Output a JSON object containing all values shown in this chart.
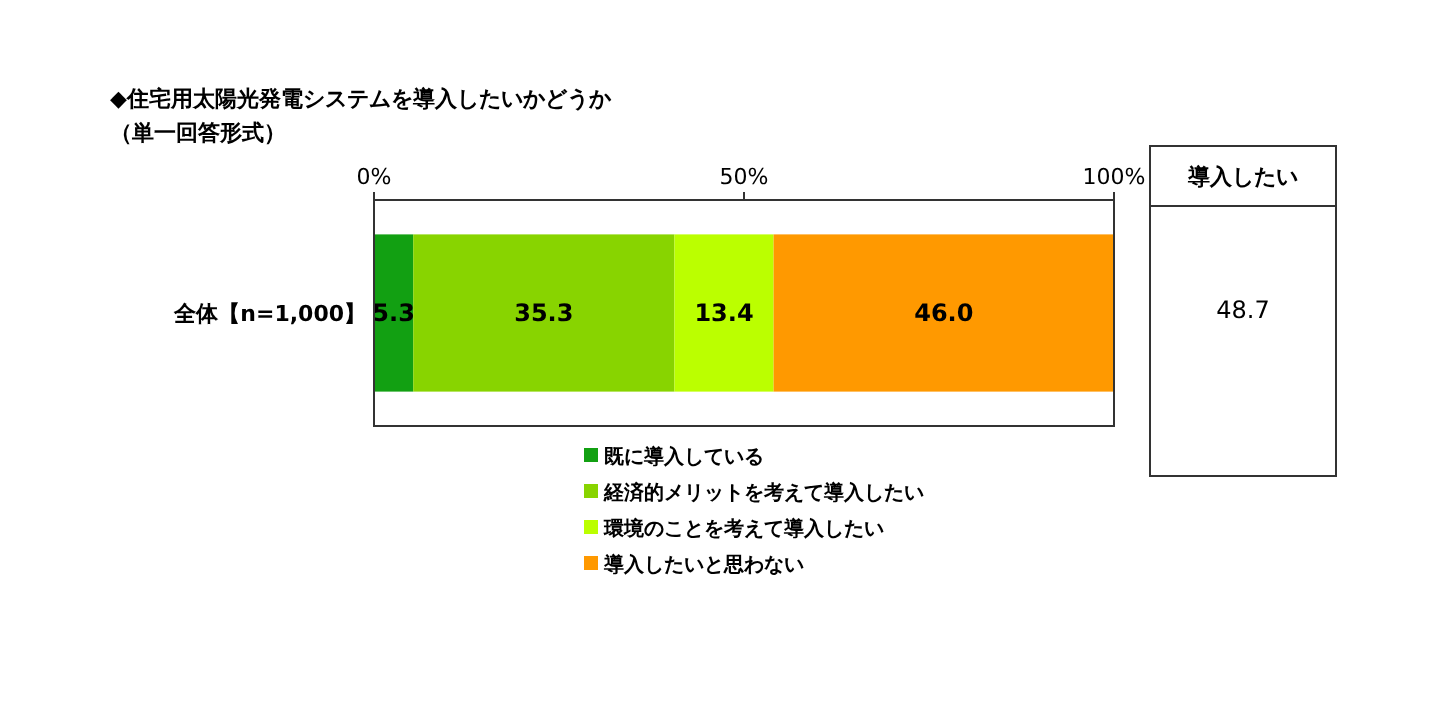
{
  "chart_data": {
    "type": "bar",
    "orientation": "horizontal",
    "stacked": true,
    "title": "◆住宅用太陽光発電システムを導入したいかどうか",
    "subtitle": "（単一回答形式）",
    "categories": [
      "全体【n=1,000】"
    ],
    "series": [
      {
        "name": "既に導入している",
        "color": "#12a012",
        "values": [
          5.3
        ],
        "value_labels": [
          "5.3"
        ]
      },
      {
        "name": "経済的メリットを考えて導入したい",
        "color": "#88d400",
        "values": [
          35.3
        ],
        "value_labels": [
          "35.3"
        ]
      },
      {
        "name": "環境のことを考えて導入したい",
        "color": "#bbff00",
        "values": [
          13.4
        ],
        "value_labels": [
          "13.4"
        ]
      },
      {
        "name": "導入したいと思わない",
        "color": "#ff9900",
        "values": [
          46.0
        ],
        "value_labels": [
          "46.0"
        ]
      }
    ],
    "xlim": [
      0,
      100
    ],
    "xticks": [
      {
        "value": 0,
        "label": "0%"
      },
      {
        "value": 50,
        "label": "50%"
      },
      {
        "value": 100,
        "label": "100%"
      }
    ],
    "legend": "bottom",
    "grid": false,
    "annotations": [
      "導入したい",
      "48.7"
    ]
  }
}
